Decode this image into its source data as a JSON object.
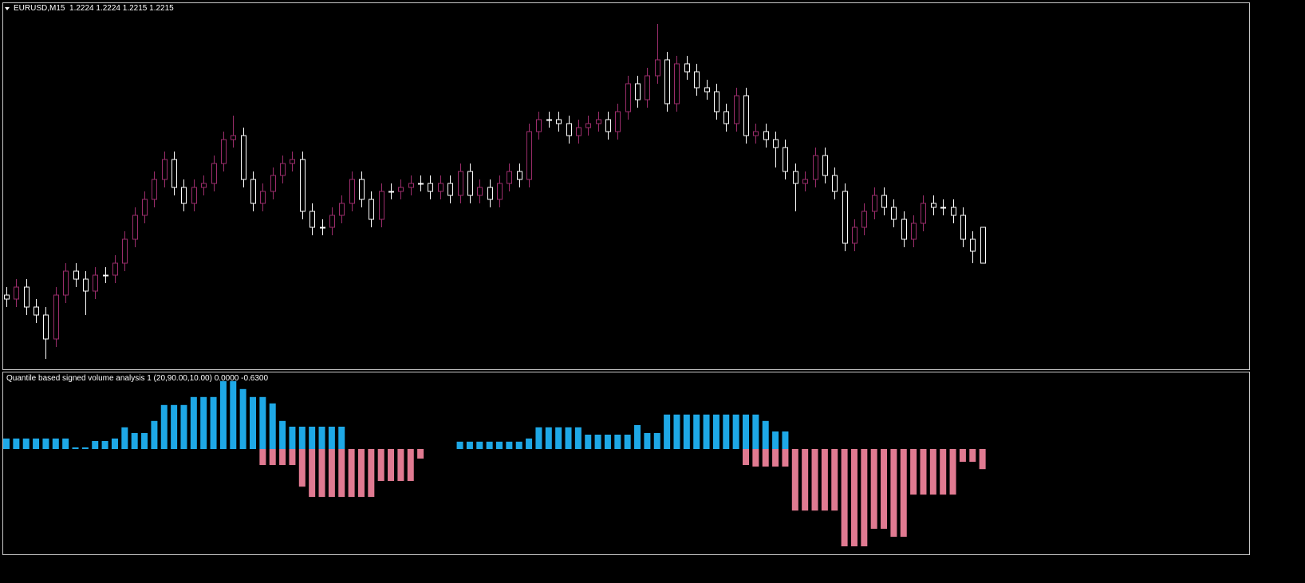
{
  "chart_data": [
    {
      "type": "candlestick",
      "title": "EURUSD,M15",
      "header_values": [
        1.2224,
        1.2224,
        1.2215,
        1.2215
      ],
      "up_color": "#9b2d6b",
      "down_color": "#ffffff",
      "ylim": [
        1.2188,
        1.228
      ],
      "open": [
        1.2207,
        1.2206,
        1.2209,
        1.2204,
        1.2202,
        1.2196,
        1.2207,
        1.2213,
        1.2211,
        1.2208,
        1.2212,
        1.2212,
        1.2215,
        1.2221,
        1.2227,
        1.2231,
        1.2236,
        1.2241,
        1.2234,
        1.223,
        1.2234,
        1.2235,
        1.224,
        1.2246,
        1.2247,
        1.2236,
        1.223,
        1.2233,
        1.2237,
        1.224,
        1.2241,
        1.2228,
        1.2224,
        1.2224,
        1.2227,
        1.223,
        1.2236,
        1.2231,
        1.2226,
        1.2233,
        1.2233,
        1.2234,
        1.2235,
        1.2235,
        1.2233,
        1.2235,
        1.2232,
        1.2238,
        1.2232,
        1.2234,
        1.2231,
        1.2235,
        1.2238,
        1.2236,
        1.2248,
        1.2251,
        1.2251,
        1.225,
        1.2247,
        1.2249,
        1.225,
        1.2251,
        1.2248,
        1.2253,
        1.226,
        1.2256,
        1.2262,
        1.2266,
        1.2255,
        1.2265,
        1.2263,
        1.2259,
        1.2258,
        1.2253,
        1.225,
        1.2257,
        1.2247,
        1.2248,
        1.2246,
        1.2244,
        1.2238,
        1.2235,
        1.2236,
        1.2242,
        1.2237,
        1.2233,
        1.222,
        1.2224,
        1.2228,
        1.2232,
        1.2229,
        1.2226,
        1.2221,
        1.2225,
        1.223,
        1.2229,
        1.2229,
        1.2227,
        1.2221,
        1.2224
      ],
      "high": [
        1.2209,
        1.2211,
        1.2211,
        1.2206,
        1.2204,
        1.2209,
        1.2215,
        1.2215,
        1.2213,
        1.2214,
        1.2214,
        1.2217,
        1.2223,
        1.2229,
        1.2233,
        1.2238,
        1.2243,
        1.2243,
        1.2236,
        1.2236,
        1.2237,
        1.2242,
        1.2248,
        1.2252,
        1.2249,
        1.2238,
        1.2235,
        1.2239,
        1.2242,
        1.2243,
        1.2243,
        1.223,
        1.2226,
        1.2229,
        1.2232,
        1.2238,
        1.2238,
        1.2233,
        1.2235,
        1.2235,
        1.2236,
        1.2237,
        1.2237,
        1.2237,
        1.2237,
        1.2237,
        1.224,
        1.224,
        1.2236,
        1.2236,
        1.2237,
        1.224,
        1.224,
        1.225,
        1.2253,
        1.2253,
        1.2253,
        1.2252,
        1.2251,
        1.2252,
        1.2253,
        1.2253,
        1.2255,
        1.2262,
        1.2262,
        1.2264,
        1.2275,
        1.2268,
        1.2267,
        1.2267,
        1.2265,
        1.2261,
        1.226,
        1.2255,
        1.2259,
        1.2259,
        1.225,
        1.225,
        1.2248,
        1.2246,
        1.224,
        1.2238,
        1.2244,
        1.2244,
        1.2239,
        1.2235,
        1.2226,
        1.223,
        1.2234,
        1.2234,
        1.2231,
        1.2228,
        1.2227,
        1.2232,
        1.2232,
        1.2231,
        1.2231,
        1.2229,
        1.2223,
        1.2224
      ],
      "low": [
        1.2204,
        1.2204,
        1.2202,
        1.22,
        1.2191,
        1.2194,
        1.2205,
        1.2209,
        1.2202,
        1.2206,
        1.221,
        1.221,
        1.2213,
        1.2219,
        1.2225,
        1.2229,
        1.2234,
        1.2232,
        1.2228,
        1.2228,
        1.2232,
        1.2233,
        1.2238,
        1.2244,
        1.2234,
        1.2228,
        1.2228,
        1.2231,
        1.2235,
        1.2238,
        1.2226,
        1.2222,
        1.2222,
        1.2222,
        1.2225,
        1.2228,
        1.2229,
        1.2224,
        1.2224,
        1.2231,
        1.2231,
        1.2232,
        1.2233,
        1.2231,
        1.2231,
        1.223,
        1.223,
        1.223,
        1.223,
        1.2229,
        1.2229,
        1.2233,
        1.2234,
        1.2234,
        1.2246,
        1.2249,
        1.2248,
        1.2245,
        1.2245,
        1.2247,
        1.2248,
        1.2246,
        1.2246,
        1.2251,
        1.2254,
        1.2254,
        1.226,
        1.2253,
        1.2253,
        1.2261,
        1.2257,
        1.2256,
        1.2251,
        1.2248,
        1.2248,
        1.2245,
        1.2245,
        1.2244,
        1.2239,
        1.2236,
        1.2228,
        1.2233,
        1.2234,
        1.2235,
        1.2231,
        1.2218,
        1.2218,
        1.2222,
        1.2226,
        1.2227,
        1.2224,
        1.2219,
        1.2219,
        1.2223,
        1.2227,
        1.2227,
        1.2225,
        1.2219,
        1.2215,
        1.2215
      ],
      "close": [
        1.2206,
        1.2209,
        1.2204,
        1.2202,
        1.2196,
        1.2207,
        1.2213,
        1.2211,
        1.2208,
        1.2212,
        1.2212,
        1.2215,
        1.2221,
        1.2227,
        1.2231,
        1.2236,
        1.2241,
        1.2234,
        1.223,
        1.2234,
        1.2235,
        1.224,
        1.2246,
        1.2247,
        1.2236,
        1.223,
        1.2233,
        1.2237,
        1.224,
        1.2241,
        1.2228,
        1.2224,
        1.2224,
        1.2227,
        1.223,
        1.2236,
        1.2231,
        1.2226,
        1.2233,
        1.2233,
        1.2234,
        1.2235,
        1.2235,
        1.2233,
        1.2235,
        1.2232,
        1.2238,
        1.2232,
        1.2234,
        1.2231,
        1.2235,
        1.2238,
        1.2236,
        1.2248,
        1.2251,
        1.2251,
        1.225,
        1.2247,
        1.2249,
        1.225,
        1.2251,
        1.2248,
        1.2253,
        1.226,
        1.2256,
        1.2262,
        1.2266,
        1.2255,
        1.2265,
        1.2263,
        1.2259,
        1.2258,
        1.2253,
        1.225,
        1.2257,
        1.2247,
        1.2248,
        1.2246,
        1.2244,
        1.2238,
        1.2235,
        1.2236,
        1.2242,
        1.2237,
        1.2233,
        1.222,
        1.2224,
        1.2228,
        1.2232,
        1.2229,
        1.2226,
        1.2221,
        1.2225,
        1.223,
        1.2229,
        1.2229,
        1.2227,
        1.2221,
        1.2218,
        1.2215
      ]
    },
    {
      "type": "bar",
      "title": "Quantile based signed volume analysis 1 (20,90.00,10.00)",
      "header_values": [
        {
          "value": 0,
          "label": "0.0000"
        },
        {
          "value": -0.63,
          "label": "-0.6300"
        }
      ],
      "ylim": [
        -3.25,
        2.375
      ],
      "series": [
        {
          "color": "#1ea8e6",
          "values": [
            0.33,
            0.33,
            0.33,
            0.33,
            0.33,
            0.33,
            0.33,
            0.05,
            0.05,
            0.25,
            0.25,
            0.33,
            0.68,
            0.5,
            0.5,
            0.88,
            1.38,
            1.38,
            1.38,
            1.63,
            1.63,
            1.63,
            2.13,
            2.13,
            1.88,
            1.63,
            1.63,
            1.43,
            0.88,
            0.7,
            0.7,
            0.7,
            0.7,
            0.7,
            0.7,
            null,
            null,
            null,
            null,
            null,
            null,
            null,
            null,
            null,
            null,
            null,
            0.23,
            0.23,
            0.23,
            0.23,
            0.23,
            0.23,
            0.23,
            0.33,
            0.68,
            0.68,
            0.68,
            0.68,
            0.68,
            0.45,
            0.45,
            0.45,
            0.45,
            0.45,
            0.75,
            0.5,
            0.5,
            1.08,
            1.08,
            1.08,
            1.08,
            1.08,
            1.08,
            1.08,
            1.08,
            1.08,
            1.08,
            0.88,
            0.55,
            0.55,
            null,
            null,
            null,
            null,
            null,
            null,
            null,
            null,
            null,
            null,
            null,
            null,
            null,
            null,
            null,
            null,
            null,
            null,
            null,
            null
          ]
        },
        {
          "color": "#e07a91",
          "values": [
            null,
            null,
            null,
            null,
            null,
            null,
            null,
            null,
            null,
            null,
            null,
            null,
            null,
            null,
            null,
            null,
            null,
            null,
            null,
            null,
            null,
            null,
            null,
            null,
            null,
            null,
            -0.5,
            -0.5,
            -0.5,
            -0.5,
            -1.18,
            -1.5,
            -1.5,
            -1.5,
            -1.5,
            -1.5,
            -1.5,
            -1.5,
            -1,
            -1,
            -1,
            -1,
            -0.3,
            null,
            null,
            null,
            null,
            null,
            null,
            null,
            null,
            null,
            null,
            null,
            null,
            null,
            null,
            null,
            null,
            null,
            null,
            null,
            null,
            null,
            null,
            null,
            null,
            null,
            null,
            null,
            null,
            null,
            null,
            null,
            null,
            -0.5,
            -0.55,
            -0.55,
            -0.55,
            -0.55,
            -1.93,
            -1.93,
            -1.93,
            -1.93,
            -1.93,
            -3.05,
            -3.05,
            -3.05,
            -2.5,
            -2.5,
            -2.75,
            -2.75,
            -1.43,
            -1.43,
            -1.43,
            -1.43,
            -1.43,
            -0.4,
            -0.4,
            -0.63
          ]
        }
      ]
    }
  ]
}
